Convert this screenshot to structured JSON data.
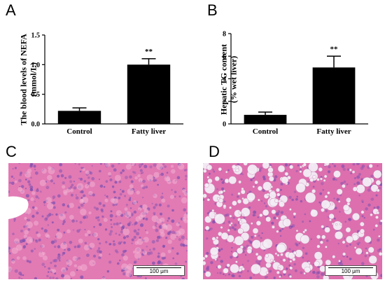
{
  "panels": {
    "A": "A",
    "B": "B",
    "C": "C",
    "D": "D"
  },
  "chart_data": [
    {
      "type": "bar",
      "panel": "A",
      "categories": [
        "Control",
        "Fatty liver"
      ],
      "values": [
        0.22,
        1.0
      ],
      "errors": [
        0.05,
        0.1
      ],
      "significance": [
        "",
        "**"
      ],
      "ylabel_lines": [
        "The blood levels of NEFA",
        "(mmol/L)"
      ],
      "xlabel": "",
      "ylim": [
        0,
        1.5
      ],
      "yticks": [
        "0.0",
        "0.5",
        "1.0",
        "1.5"
      ],
      "ytick_values": [
        0,
        0.5,
        1.0,
        1.5
      ]
    },
    {
      "type": "bar",
      "panel": "B",
      "categories": [
        "Control",
        "Fatty liver"
      ],
      "values": [
        0.8,
        5.0
      ],
      "errors": [
        0.25,
        1.0
      ],
      "significance": [
        "",
        "**"
      ],
      "ylabel_lines": [
        "Hepatic TG content",
        "(% wet liver)"
      ],
      "xlabel": "",
      "ylim": [
        0,
        8
      ],
      "yticks": [
        "0",
        "2",
        "4",
        "6",
        "8"
      ],
      "ytick_values": [
        0,
        2,
        4,
        6,
        8
      ]
    }
  ],
  "micrographs": {
    "C": {
      "scale_label": "100 μm",
      "colors": {
        "tissue": "#e27ab4",
        "nuclei": "#7a4fb0",
        "space": "#ffffff"
      }
    },
    "D": {
      "scale_label": "100 μm",
      "colors": {
        "tissue": "#dd6fae",
        "nuclei": "#7a4fb0",
        "droplet": "#f4eef6"
      }
    }
  },
  "colors": {
    "bar": "#000000",
    "axis": "#000000"
  }
}
